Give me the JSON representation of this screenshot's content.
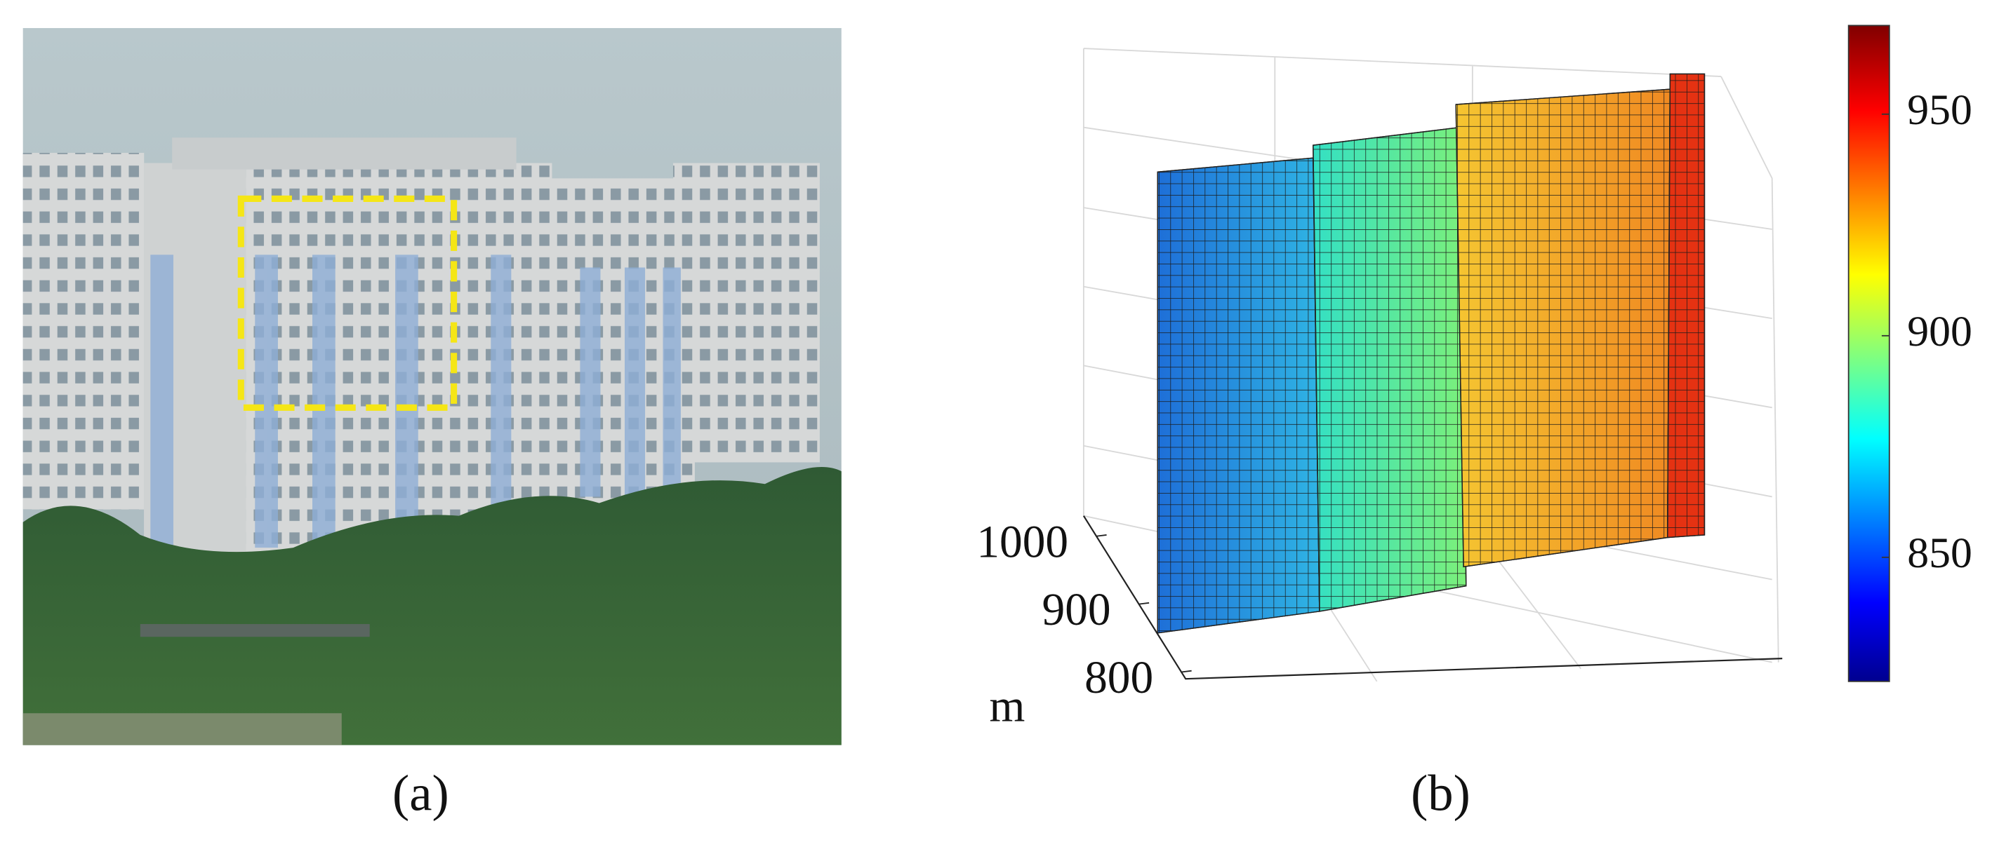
{
  "panels": [
    {
      "label": "(a)"
    },
    {
      "label": "(b)",
      "axis_label": "m",
      "depth_lim": [
        1030,
        790
      ],
      "depth_ticks": [
        1000,
        900,
        800
      ],
      "colorbar": {
        "lim": [
          822,
          970
        ],
        "ticks": [
          850,
          900,
          950
        ]
      }
    }
  ]
}
